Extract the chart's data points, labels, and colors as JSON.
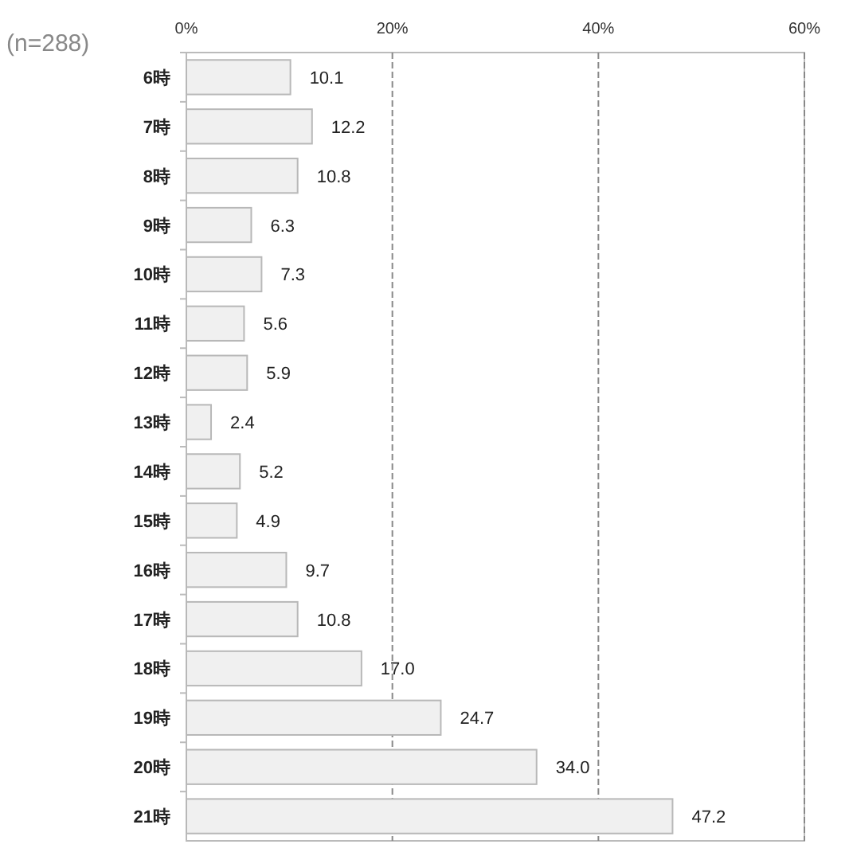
{
  "chart_data": {
    "type": "bar",
    "orientation": "horizontal",
    "annotations": [
      "(n=288)"
    ],
    "categories": [
      "6時",
      "7時",
      "8時",
      "9時",
      "10時",
      "11時",
      "12時",
      "13時",
      "14時",
      "15時",
      "16時",
      "17時",
      "18時",
      "19時",
      "20時",
      "21時"
    ],
    "values": [
      10.1,
      12.2,
      10.8,
      6.3,
      7.3,
      5.6,
      5.9,
      2.4,
      5.2,
      4.9,
      9.7,
      10.8,
      17.0,
      24.7,
      34.0,
      47.2
    ],
    "value_labels": [
      "10.1",
      "12.2",
      "10.8",
      "6.3",
      "7.3",
      "5.6",
      "5.9",
      "2.4",
      "5.2",
      "4.9",
      "9.7",
      "10.8",
      "17.0",
      "24.7",
      "34.0",
      "47.2"
    ],
    "color": "#f0f0f0",
    "xlim": [
      0,
      60
    ],
    "xticks": [
      {
        "value": 0,
        "label": "0%"
      },
      {
        "value": 20,
        "label": "20%"
      },
      {
        "value": 40,
        "label": "40%"
      },
      {
        "value": 60,
        "label": "60%"
      }
    ],
    "grid": "x"
  }
}
